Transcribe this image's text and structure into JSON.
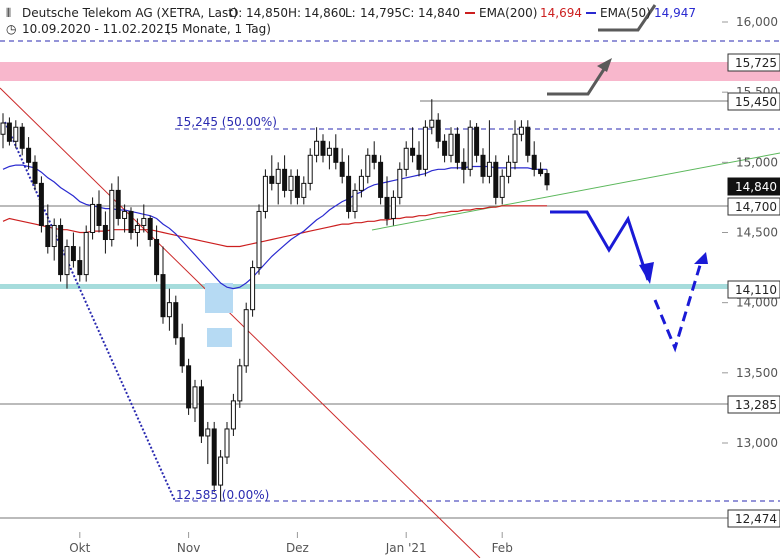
{
  "header": {
    "symbol_line": "Deutsche Telekom AG (XETRA, Last)",
    "open_label": "O:",
    "open": "14,850",
    "high_label": "H:",
    "high": "14,860",
    "low_label": "L:",
    "low": "14,795",
    "close_label": "C:",
    "close": "14,840",
    "ema200_label": "EMA(200)",
    "ema200_value": "14,694",
    "ema50_label": "EMA(50)",
    "ema50_value": "14,947",
    "range_line": "10.09.2020 - 11.02.2021",
    "period_line": "(5 Monate, 1 Tag)"
  },
  "colors": {
    "ema200": "#cc1f1f",
    "ema50": "#2a2ad0",
    "resistance_zone": "#f8b7cc",
    "support_line": "#9fd8d8",
    "forecast": "#1a1ad6",
    "gray_arrow": "#5a5a5a",
    "trendline_green": "#5cb85c",
    "accumulation_box": "#b6daf3"
  },
  "chart_data": {
    "type": "candlestick",
    "title": "Deutsche Telekom AG (XETRA, Last)",
    "ylim": [
      12300,
      16350
    ],
    "y_ticks": [
      "16,000",
      "15,500",
      "15,000",
      "14,500",
      "14,000",
      "13,500",
      "13,000"
    ],
    "x_ticks": [
      "Okt",
      "Nov",
      "Dez",
      "Jan '21",
      "Feb"
    ],
    "levels": [
      {
        "label": "15,725",
        "value": 15.725,
        "style": "zone"
      },
      {
        "label": "15,450",
        "value": 15.45,
        "style": "line"
      },
      {
        "label": "14,700",
        "value": 14.7,
        "style": "line"
      },
      {
        "label": "14,110",
        "value": 14.11,
        "style": "support"
      },
      {
        "label": "13,285",
        "value": 13.285,
        "style": "line"
      },
      {
        "label": "12,474",
        "value": 12.474,
        "style": "line"
      }
    ],
    "last_price": {
      "label": "14,840",
      "value": 14.84
    },
    "fibonacci": [
      {
        "label": "15,245 (50.00%)",
        "value": 15.245
      },
      {
        "label": "12,585 (0.00%)",
        "value": 12.585
      }
    ],
    "candles": [
      {
        "o": 15.2,
        "h": 15.35,
        "l": 15.1,
        "c": 15.28
      },
      {
        "o": 15.28,
        "h": 15.32,
        "l": 15.12,
        "c": 15.15
      },
      {
        "o": 15.15,
        "h": 15.3,
        "l": 15.1,
        "c": 15.25
      },
      {
        "o": 15.25,
        "h": 15.28,
        "l": 15.05,
        "c": 15.1
      },
      {
        "o": 15.1,
        "h": 15.18,
        "l": 14.95,
        "c": 15.0
      },
      {
        "o": 15.0,
        "h": 15.05,
        "l": 14.8,
        "c": 14.85
      },
      {
        "o": 14.85,
        "h": 14.9,
        "l": 14.5,
        "c": 14.55
      },
      {
        "o": 14.55,
        "h": 14.7,
        "l": 14.35,
        "c": 14.4
      },
      {
        "o": 14.4,
        "h": 14.6,
        "l": 14.3,
        "c": 14.55
      },
      {
        "o": 14.55,
        "h": 14.6,
        "l": 14.15,
        "c": 14.2
      },
      {
        "o": 14.2,
        "h": 14.45,
        "l": 14.1,
        "c": 14.4
      },
      {
        "o": 14.4,
        "h": 14.5,
        "l": 14.25,
        "c": 14.3
      },
      {
        "o": 14.3,
        "h": 14.4,
        "l": 14.15,
        "c": 14.2
      },
      {
        "o": 14.2,
        "h": 14.55,
        "l": 14.15,
        "c": 14.5
      },
      {
        "o": 14.5,
        "h": 14.75,
        "l": 14.45,
        "c": 14.7
      },
      {
        "o": 14.7,
        "h": 14.8,
        "l": 14.5,
        "c": 14.55
      },
      {
        "o": 14.55,
        "h": 14.65,
        "l": 14.35,
        "c": 14.45
      },
      {
        "o": 14.45,
        "h": 14.85,
        "l": 14.4,
        "c": 14.8
      },
      {
        "o": 14.8,
        "h": 14.9,
        "l": 14.55,
        "c": 14.6
      },
      {
        "o": 14.6,
        "h": 14.7,
        "l": 14.5,
        "c": 14.65
      },
      {
        "o": 14.65,
        "h": 14.68,
        "l": 14.45,
        "c": 14.5
      },
      {
        "o": 14.5,
        "h": 14.6,
        "l": 14.4,
        "c": 14.55
      },
      {
        "o": 14.55,
        "h": 14.7,
        "l": 14.5,
        "c": 14.6
      },
      {
        "o": 14.6,
        "h": 14.62,
        "l": 14.4,
        "c": 14.45
      },
      {
        "o": 14.45,
        "h": 14.55,
        "l": 14.15,
        "c": 14.2
      },
      {
        "o": 14.2,
        "h": 14.4,
        "l": 13.85,
        "c": 13.9
      },
      {
        "o": 13.9,
        "h": 14.1,
        "l": 13.8,
        "c": 14.0
      },
      {
        "o": 14.0,
        "h": 14.05,
        "l": 13.7,
        "c": 13.75
      },
      {
        "o": 13.75,
        "h": 13.85,
        "l": 13.5,
        "c": 13.55
      },
      {
        "o": 13.55,
        "h": 13.6,
        "l": 13.2,
        "c": 13.25
      },
      {
        "o": 13.25,
        "h": 13.45,
        "l": 13.15,
        "c": 13.4
      },
      {
        "o": 13.4,
        "h": 13.45,
        "l": 13.0,
        "c": 13.05
      },
      {
        "o": 13.05,
        "h": 13.15,
        "l": 12.85,
        "c": 13.1
      },
      {
        "o": 13.1,
        "h": 13.15,
        "l": 12.65,
        "c": 12.7
      },
      {
        "o": 12.7,
        "h": 12.95,
        "l": 12.585,
        "c": 12.9
      },
      {
        "o": 12.9,
        "h": 13.15,
        "l": 12.85,
        "c": 13.1
      },
      {
        "o": 13.1,
        "h": 13.35,
        "l": 13.05,
        "c": 13.3
      },
      {
        "o": 13.3,
        "h": 13.6,
        "l": 13.25,
        "c": 13.55
      },
      {
        "o": 13.55,
        "h": 14.0,
        "l": 13.5,
        "c": 13.95
      },
      {
        "o": 13.95,
        "h": 14.3,
        "l": 13.9,
        "c": 14.25
      },
      {
        "o": 14.25,
        "h": 14.7,
        "l": 14.2,
        "c": 14.65
      },
      {
        "o": 14.65,
        "h": 14.95,
        "l": 14.6,
        "c": 14.9
      },
      {
        "o": 14.9,
        "h": 15.05,
        "l": 14.8,
        "c": 14.85
      },
      {
        "o": 14.85,
        "h": 15.0,
        "l": 14.7,
        "c": 14.95
      },
      {
        "o": 14.95,
        "h": 15.05,
        "l": 14.75,
        "c": 14.8
      },
      {
        "o": 14.8,
        "h": 14.95,
        "l": 14.7,
        "c": 14.9
      },
      {
        "o": 14.9,
        "h": 14.95,
        "l": 14.7,
        "c": 14.75
      },
      {
        "o": 14.75,
        "h": 14.9,
        "l": 14.7,
        "c": 14.85
      },
      {
        "o": 14.85,
        "h": 15.1,
        "l": 14.8,
        "c": 15.05
      },
      {
        "o": 15.05,
        "h": 15.25,
        "l": 15.0,
        "c": 15.15
      },
      {
        "o": 15.15,
        "h": 15.2,
        "l": 15.0,
        "c": 15.05
      },
      {
        "o": 15.05,
        "h": 15.15,
        "l": 14.95,
        "c": 15.1
      },
      {
        "o": 15.1,
        "h": 15.2,
        "l": 14.95,
        "c": 15.0
      },
      {
        "o": 15.0,
        "h": 15.1,
        "l": 14.85,
        "c": 14.9
      },
      {
        "o": 14.9,
        "h": 15.05,
        "l": 14.6,
        "c": 14.65
      },
      {
        "o": 14.65,
        "h": 14.85,
        "l": 14.6,
        "c": 14.8
      },
      {
        "o": 14.8,
        "h": 14.95,
        "l": 14.75,
        "c": 14.9
      },
      {
        "o": 14.9,
        "h": 15.1,
        "l": 14.85,
        "c": 15.05
      },
      {
        "o": 15.05,
        "h": 15.15,
        "l": 14.95,
        "c": 15.0
      },
      {
        "o": 15.0,
        "h": 15.05,
        "l": 14.7,
        "c": 14.75
      },
      {
        "o": 14.75,
        "h": 14.9,
        "l": 14.55,
        "c": 14.6
      },
      {
        "o": 14.6,
        "h": 14.8,
        "l": 14.55,
        "c": 14.75
      },
      {
        "o": 14.75,
        "h": 15.0,
        "l": 14.7,
        "c": 14.95
      },
      {
        "o": 14.95,
        "h": 15.15,
        "l": 14.9,
        "c": 15.1
      },
      {
        "o": 15.1,
        "h": 15.25,
        "l": 15.0,
        "c": 15.05
      },
      {
        "o": 15.05,
        "h": 15.15,
        "l": 14.9,
        "c": 14.95
      },
      {
        "o": 14.95,
        "h": 15.3,
        "l": 14.9,
        "c": 15.25
      },
      {
        "o": 15.25,
        "h": 15.45,
        "l": 15.2,
        "c": 15.3
      },
      {
        "o": 15.3,
        "h": 15.35,
        "l": 15.1,
        "c": 15.15
      },
      {
        "o": 15.15,
        "h": 15.2,
        "l": 15.0,
        "c": 15.05
      },
      {
        "o": 15.05,
        "h": 15.25,
        "l": 15.0,
        "c": 15.2
      },
      {
        "o": 15.2,
        "h": 15.25,
        "l": 14.95,
        "c": 15.0
      },
      {
        "o": 15.0,
        "h": 15.1,
        "l": 14.85,
        "c": 14.95
      },
      {
        "o": 14.95,
        "h": 15.3,
        "l": 14.9,
        "c": 15.25
      },
      {
        "o": 15.25,
        "h": 15.28,
        "l": 15.0,
        "c": 15.05
      },
      {
        "o": 15.05,
        "h": 15.1,
        "l": 14.85,
        "c": 14.9
      },
      {
        "o": 14.9,
        "h": 15.3,
        "l": 14.85,
        "c": 15.0
      },
      {
        "o": 15.0,
        "h": 15.05,
        "l": 14.7,
        "c": 14.75
      },
      {
        "o": 14.75,
        "h": 14.95,
        "l": 14.7,
        "c": 14.9
      },
      {
        "o": 14.9,
        "h": 15.05,
        "l": 14.85,
        "c": 15.0
      },
      {
        "o": 15.0,
        "h": 15.3,
        "l": 14.95,
        "c": 15.2
      },
      {
        "o": 15.2,
        "h": 15.3,
        "l": 15.15,
        "c": 15.25
      },
      {
        "o": 15.25,
        "h": 15.3,
        "l": 15.0,
        "c": 15.05
      },
      {
        "o": 15.05,
        "h": 15.15,
        "l": 14.9,
        "c": 14.95
      },
      {
        "o": 14.95,
        "h": 15.0,
        "l": 14.9,
        "c": 14.92
      },
      {
        "o": 14.92,
        "h": 14.95,
        "l": 14.8,
        "c": 14.84
      }
    ],
    "ema200": [
      14.58,
      14.6,
      14.59,
      14.58,
      14.57,
      14.56,
      14.55,
      14.54,
      14.53,
      14.52,
      14.52,
      14.51,
      14.5,
      14.5,
      14.51,
      14.51,
      14.51,
      14.52,
      14.52,
      14.52,
      14.52,
      14.52,
      14.52,
      14.52,
      14.51,
      14.5,
      14.49,
      14.48,
      14.47,
      14.46,
      14.45,
      14.44,
      14.43,
      14.42,
      14.41,
      14.4,
      14.4,
      14.4,
      14.41,
      14.42,
      14.43,
      14.44,
      14.45,
      14.46,
      14.47,
      14.48,
      14.49,
      14.5,
      14.51,
      14.52,
      14.53,
      14.54,
      14.55,
      14.56,
      14.56,
      14.57,
      14.57,
      14.58,
      14.58,
      14.59,
      14.59,
      14.6,
      14.6,
      14.61,
      14.61,
      14.62,
      14.62,
      14.63,
      14.64,
      14.64,
      14.65,
      14.65,
      14.66,
      14.66,
      14.67,
      14.67,
      14.68,
      14.68,
      14.69,
      14.69,
      14.69,
      14.69,
      14.69,
      14.69,
      14.69,
      14.69
    ],
    "ema50": [
      14.95,
      14.97,
      14.98,
      14.98,
      14.97,
      14.96,
      14.93,
      14.89,
      14.86,
      14.82,
      14.79,
      14.76,
      14.72,
      14.7,
      14.69,
      14.68,
      14.67,
      14.67,
      14.66,
      14.66,
      14.65,
      14.64,
      14.63,
      14.62,
      14.6,
      14.56,
      14.53,
      14.49,
      14.44,
      14.39,
      14.34,
      14.29,
      14.24,
      14.19,
      14.14,
      14.11,
      14.1,
      14.11,
      14.14,
      14.18,
      14.23,
      14.28,
      14.33,
      14.37,
      14.41,
      14.45,
      14.48,
      14.51,
      14.55,
      14.59,
      14.62,
      14.66,
      14.69,
      14.72,
      14.74,
      14.77,
      14.79,
      14.82,
      14.84,
      14.85,
      14.86,
      14.87,
      14.88,
      14.89,
      14.9,
      14.91,
      14.92,
      14.94,
      14.95,
      14.95,
      14.96,
      14.96,
      14.96,
      14.97,
      14.97,
      14.97,
      14.97,
      14.96,
      14.96,
      14.96,
      14.96,
      14.96,
      14.96,
      14.95,
      14.95,
      14.95
    ],
    "forecast_path": [
      14.7,
      14.7,
      14.37,
      14.62,
      14.12
    ],
    "forecast_dashed": [
      14.12,
      13.65,
      14.37
    ]
  }
}
